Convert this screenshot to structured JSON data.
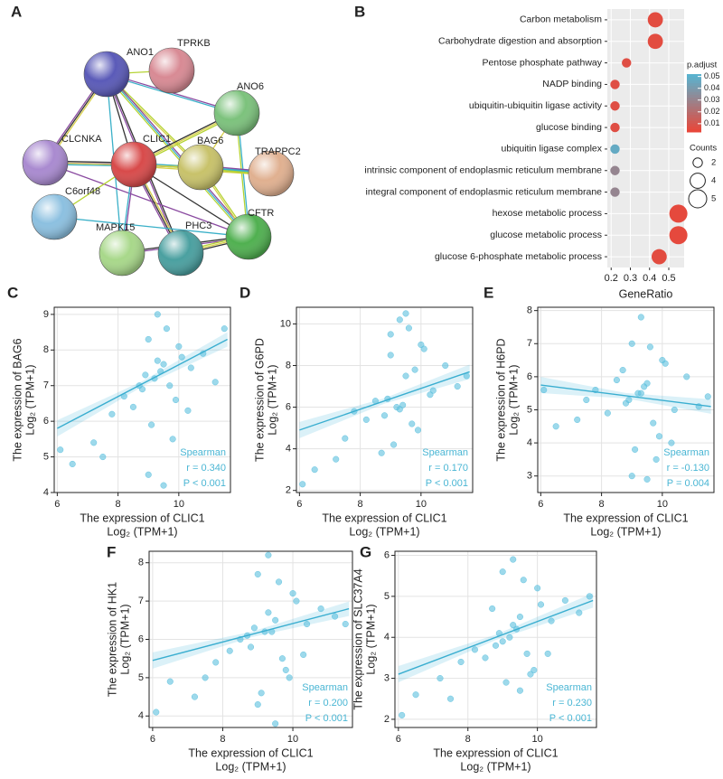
{
  "network": {
    "label": "A",
    "nodes": [
      "ANO1",
      "TPRKB",
      "ANO6",
      "CLCNKA",
      "CLIC1",
      "BAG6",
      "TRAPPC2",
      "C6orf48",
      "MAPK15",
      "PHC3",
      "CFTR"
    ]
  },
  "chart_data": [
    {
      "type": "dot",
      "label": "B",
      "categories": [
        "Carbon metabolism",
        "Carbohydrate digestion and absorption",
        "Pentose phosphate pathway",
        "NADP binding",
        "ubiquitin-ubiquitin ligase activity",
        "glucose binding",
        "ubiquitin ligase complex",
        "intrinsic component of endoplasmic reticulum membrane",
        "integral component of endoplasmic reticulum membrane",
        "hexose metabolic process",
        "glucose metabolic process",
        "glucose 6-phosphate metabolic process"
      ],
      "values": [
        0.43,
        0.43,
        0.28,
        0.22,
        0.22,
        0.22,
        0.22,
        0.22,
        0.22,
        0.55,
        0.55,
        0.45
      ],
      "counts": [
        4,
        4,
        2,
        2,
        2,
        2,
        2,
        2,
        2,
        5,
        5,
        4
      ],
      "p_adjust": [
        0.005,
        0.005,
        0.006,
        0.006,
        0.006,
        0.006,
        0.046,
        0.03,
        0.03,
        0.004,
        0.004,
        0.005
      ],
      "xlabel": "GeneRatio",
      "xlim": [
        0.18,
        0.58
      ],
      "xticks": [
        0.2,
        0.3,
        0.4,
        0.5
      ],
      "color_title": "p.adjust",
      "color_lim": [
        0.003,
        0.052
      ],
      "color_ticks": [
        0.01,
        0.02,
        0.03,
        0.04,
        0.05
      ],
      "color_low": "#e8473a",
      "color_high": "#52b8d6",
      "size_title": "Counts",
      "size_ticks": [
        2,
        4,
        5
      ],
      "grid": true
    },
    {
      "type": "scatter",
      "label": "C",
      "x": [
        9.2,
        9.5,
        8.8,
        10.1,
        9.0,
        9.7,
        8.5,
        10.4,
        9.3,
        9.9,
        7.8,
        10.8,
        9.1,
        9.6,
        8.9,
        11.2,
        7.2,
        6.1,
        6.5,
        9.4,
        10.0,
        8.2,
        9.8,
        9.0,
        11.5,
        7.5,
        9.3,
        10.3,
        8.7,
        9.5
      ],
      "y": [
        7.2,
        7.6,
        6.9,
        7.8,
        8.3,
        7.0,
        6.4,
        7.5,
        9.0,
        6.6,
        6.2,
        7.9,
        5.9,
        8.6,
        7.3,
        7.1,
        5.4,
        5.2,
        4.8,
        7.4,
        8.1,
        6.7,
        5.5,
        4.5,
        8.6,
        5.0,
        7.7,
        6.3,
        7.0,
        4.2
      ],
      "trend": {
        "x": [
          6,
          11.6
        ],
        "y": [
          5.8,
          8.3
        ]
      },
      "xlim": [
        5.9,
        11.7
      ],
      "xticks": [
        6,
        8,
        10
      ],
      "ylim": [
        4,
        9.2
      ],
      "yticks": [
        4,
        5,
        6,
        7,
        8,
        9
      ],
      "xlabel": [
        "The expression of CLIC1",
        "Log₂ (TPM+1)"
      ],
      "ylabel": [
        "The expression of BAG6",
        "Log₂ (TPM+1)"
      ],
      "annotations": [
        "Spearman",
        "r = 0.340",
        "P < 0.001"
      ],
      "color": "#5bc0de",
      "grid": true
    },
    {
      "type": "scatter",
      "label": "D",
      "x": [
        9.2,
        9.5,
        8.8,
        10.1,
        9.0,
        9.7,
        8.5,
        10.4,
        9.3,
        9.9,
        7.8,
        10.8,
        9.1,
        9.6,
        8.9,
        11.2,
        7.2,
        6.1,
        6.5,
        9.4,
        10.0,
        8.2,
        9.8,
        9.0,
        11.5,
        7.5,
        9.3,
        10.3,
        8.7,
        9.5
      ],
      "y": [
        6.0,
        7.5,
        5.6,
        8.8,
        9.5,
        5.2,
        6.3,
        6.8,
        10.2,
        4.9,
        5.8,
        8.0,
        4.2,
        9.8,
        6.4,
        7.0,
        3.5,
        2.3,
        3.0,
        6.1,
        9.0,
        5.4,
        7.8,
        8.5,
        7.5,
        4.5,
        5.9,
        6.6,
        3.8,
        10.5
      ],
      "trend": {
        "x": [
          6,
          11.6
        ],
        "y": [
          4.9,
          7.7
        ]
      },
      "xlim": [
        5.9,
        11.7
      ],
      "xticks": [
        6,
        8,
        10
      ],
      "ylim": [
        1.9,
        10.8
      ],
      "yticks": [
        2,
        4,
        6,
        8,
        10
      ],
      "xlabel": [
        "The expression of CLIC1",
        "Log₂ (TPM+1)"
      ],
      "ylabel": [
        "The expression of G6PD",
        "Log₂ (TPM+1)"
      ],
      "annotations": [
        "Spearman",
        "r = 0.170",
        "P < 0.001"
      ],
      "color": "#5bc0de",
      "grid": true
    },
    {
      "type": "scatter",
      "label": "E",
      "x": [
        9.2,
        9.5,
        8.8,
        10.1,
        9.0,
        9.7,
        8.5,
        10.4,
        9.3,
        9.9,
        7.8,
        10.8,
        9.1,
        9.6,
        8.9,
        11.2,
        7.2,
        6.1,
        6.5,
        9.4,
        10.0,
        8.2,
        9.8,
        9.0,
        11.5,
        7.5,
        9.3,
        10.3,
        8.7,
        9.5
      ],
      "y": [
        5.5,
        5.8,
        5.2,
        6.4,
        7.0,
        4.6,
        5.9,
        5.0,
        7.8,
        4.2,
        5.6,
        6.0,
        3.8,
        6.9,
        5.3,
        5.1,
        4.7,
        5.6,
        4.5,
        5.7,
        6.5,
        4.9,
        3.5,
        3.0,
        5.4,
        5.3,
        5.5,
        4.0,
        6.2,
        2.9
      ],
      "trend": {
        "x": [
          6,
          11.6
        ],
        "y": [
          5.75,
          5.1
        ]
      },
      "xlim": [
        5.9,
        11.7
      ],
      "xticks": [
        6,
        8,
        10
      ],
      "ylim": [
        2.5,
        8.1
      ],
      "yticks": [
        3,
        4,
        5,
        6,
        7,
        8
      ],
      "xlabel": [
        "The expression of CLIC1",
        "Log₂ (TPM+1)"
      ],
      "ylabel": [
        "The expression of H6PD",
        "Log₂ (TPM+1)"
      ],
      "annotations": [
        "Spearman",
        "r = -0.130",
        "P = 0.004"
      ],
      "color": "#5bc0de",
      "grid": true
    },
    {
      "type": "scatter",
      "label": "F",
      "x": [
        9.2,
        9.5,
        8.8,
        10.1,
        9.0,
        9.7,
        8.5,
        10.4,
        9.3,
        9.9,
        7.8,
        10.8,
        9.1,
        9.6,
        8.9,
        11.2,
        7.2,
        6.1,
        6.5,
        9.4,
        10.0,
        8.2,
        9.8,
        9.0,
        11.5,
        7.5,
        9.3,
        10.3,
        8.7,
        9.5
      ],
      "y": [
        6.2,
        6.5,
        5.8,
        7.0,
        7.7,
        5.5,
        6.0,
        6.4,
        8.2,
        5.0,
        5.4,
        6.8,
        4.6,
        7.5,
        6.3,
        6.6,
        4.5,
        4.1,
        4.9,
        6.2,
        7.2,
        5.7,
        5.2,
        4.3,
        6.4,
        5.0,
        6.7,
        5.6,
        6.1,
        3.8
      ],
      "trend": {
        "x": [
          6,
          11.6
        ],
        "y": [
          5.45,
          6.8
        ]
      },
      "xlim": [
        5.9,
        11.7
      ],
      "xticks": [
        6,
        8,
        10
      ],
      "ylim": [
        3.7,
        8.3
      ],
      "yticks": [
        4,
        5,
        6,
        7,
        8
      ],
      "xlabel": [
        "The expression of CLIC1",
        "Log₂ (TPM+1)"
      ],
      "ylabel": [
        "The expression of HK1",
        "Log₂ (TPM+1)"
      ],
      "annotations": [
        "Spearman",
        "r = 0.200",
        "P < 0.001"
      ],
      "color": "#5bc0de",
      "grid": true
    },
    {
      "type": "scatter",
      "label": "G",
      "x": [
        9.2,
        9.5,
        8.8,
        10.1,
        9.0,
        9.7,
        8.5,
        10.4,
        9.3,
        9.9,
        7.8,
        10.8,
        9.1,
        9.6,
        8.9,
        11.2,
        7.2,
        6.1,
        6.5,
        9.4,
        10.0,
        8.2,
        9.8,
        9.0,
        11.5,
        7.5,
        9.3,
        10.3,
        8.7,
        9.5
      ],
      "y": [
        4.0,
        4.5,
        3.8,
        4.8,
        5.6,
        3.6,
        3.5,
        4.4,
        5.9,
        3.2,
        3.4,
        4.9,
        2.9,
        5.4,
        4.1,
        4.6,
        3.0,
        2.1,
        2.6,
        4.2,
        5.2,
        3.7,
        3.1,
        3.9,
        5.0,
        2.5,
        4.3,
        3.6,
        4.7,
        2.7
      ],
      "trend": {
        "x": [
          6,
          11.6
        ],
        "y": [
          3.1,
          4.9
        ]
      },
      "xlim": [
        5.9,
        11.7
      ],
      "xticks": [
        6,
        8,
        10
      ],
      "ylim": [
        1.8,
        6.1
      ],
      "yticks": [
        2,
        3,
        4,
        5,
        6
      ],
      "xlabel": [
        "The expression of CLIC1",
        "Log₂ (TPM+1)"
      ],
      "ylabel": [
        "The expression of SLC37A4",
        "Log₂ (TPM+1)"
      ],
      "annotations": [
        "Spearman",
        "r = 0.230",
        "P < 0.001"
      ],
      "color": "#5bc0de",
      "grid": true
    }
  ]
}
